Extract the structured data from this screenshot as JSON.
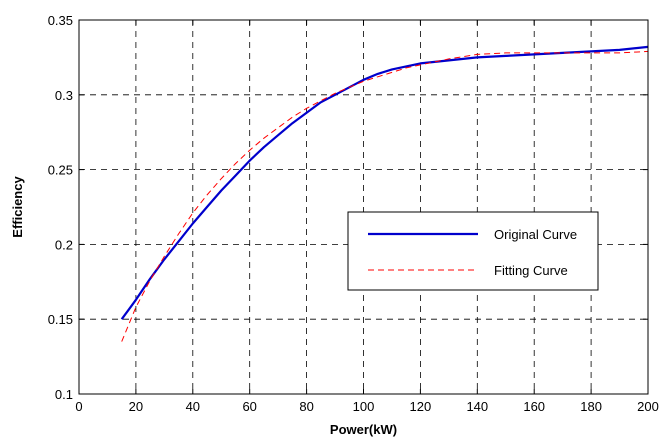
{
  "chart_data": {
    "type": "line",
    "title": "",
    "xlabel": "Power(kW)",
    "ylabel": "Efficiency",
    "xlim": [
      0,
      200
    ],
    "ylim": [
      0.1,
      0.35
    ],
    "xticks": [
      0,
      20,
      40,
      60,
      80,
      100,
      120,
      140,
      160,
      180,
      200
    ],
    "yticks": [
      0.1,
      0.15,
      0.2,
      0.25,
      0.3,
      0.35
    ],
    "xtick_labels": [
      "0",
      "20",
      "40",
      "60",
      "80",
      "100",
      "120",
      "140",
      "160",
      "180",
      "200"
    ],
    "ytick_labels": [
      "0.1",
      "0.15",
      "0.2",
      "0.25",
      "0.3",
      "0.35"
    ],
    "grid": true,
    "legend_position": "center-right",
    "series": [
      {
        "name": "Original Curve",
        "color": "#0000cc",
        "style": "solid",
        "x": [
          15,
          20,
          25,
          30,
          35,
          40,
          45,
          50,
          55,
          60,
          65,
          70,
          75,
          80,
          85,
          90,
          95,
          100,
          105,
          110,
          115,
          120,
          130,
          140,
          150,
          160,
          170,
          180,
          190,
          200
        ],
        "y": [
          0.15,
          0.163,
          0.177,
          0.19,
          0.202,
          0.214,
          0.225,
          0.236,
          0.246,
          0.256,
          0.265,
          0.273,
          0.281,
          0.288,
          0.295,
          0.3,
          0.305,
          0.31,
          0.314,
          0.317,
          0.319,
          0.321,
          0.323,
          0.325,
          0.326,
          0.327,
          0.328,
          0.329,
          0.33,
          0.332
        ]
      },
      {
        "name": "Fitting Curve",
        "color": "#ff0000",
        "style": "dashed",
        "x": [
          15,
          20,
          25,
          30,
          35,
          40,
          45,
          50,
          55,
          60,
          65,
          70,
          75,
          80,
          85,
          90,
          95,
          100,
          105,
          110,
          115,
          120,
          130,
          140,
          150,
          160,
          170,
          180,
          190,
          200
        ],
        "y": [
          0.135,
          0.158,
          0.176,
          0.192,
          0.207,
          0.221,
          0.233,
          0.244,
          0.254,
          0.263,
          0.271,
          0.278,
          0.285,
          0.291,
          0.296,
          0.301,
          0.305,
          0.309,
          0.312,
          0.315,
          0.318,
          0.32,
          0.324,
          0.327,
          0.328,
          0.328,
          0.328,
          0.328,
          0.328,
          0.329
        ]
      }
    ]
  }
}
